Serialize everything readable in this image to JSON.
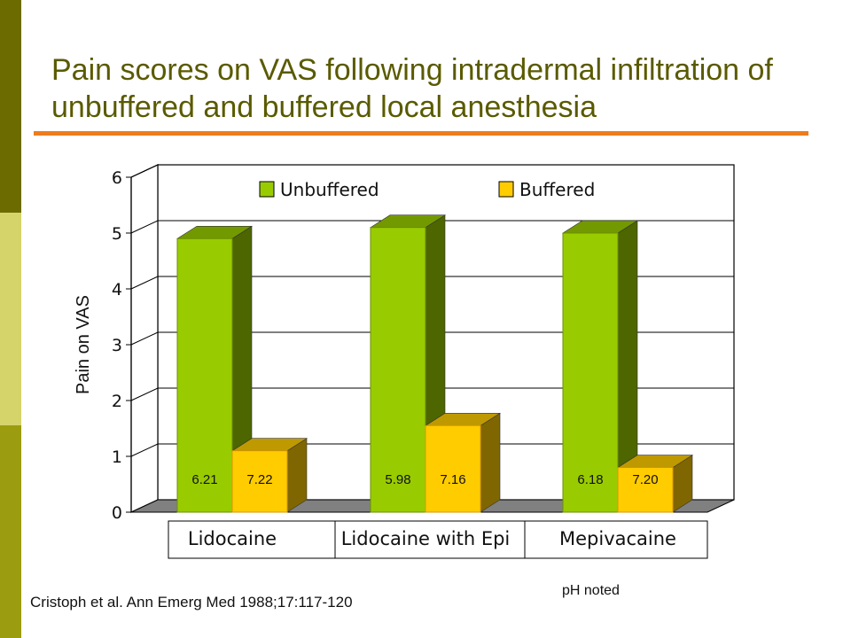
{
  "title": "Pain scores on VAS following intradermal infiltration of unbuffered and buffered local anesthesia",
  "citation": "Cristoph et al. Ann Emerg Med 1988;17:117-120",
  "note": "pH noted",
  "colors": {
    "accent_rule": "#ee7c1c",
    "title_text": "#5a5a00",
    "unbuffered_front": "#99cc00",
    "unbuffered_side": "#4d6600",
    "unbuffered_top": "#739900",
    "buffered_front": "#ffcc00",
    "buffered_side": "#806600",
    "buffered_top": "#bf9900"
  },
  "chart_data": {
    "type": "bar",
    "categories": [
      "Lidocaine",
      "Lidocaine with Epi",
      "Mepivacaine"
    ],
    "series": [
      {
        "name": "Unbuffered",
        "values": [
          4.9,
          5.1,
          5.0
        ],
        "labels": [
          "6.21",
          "5.98",
          "6.18"
        ]
      },
      {
        "name": "Buffered",
        "values": [
          1.1,
          1.55,
          0.8
        ],
        "labels": [
          "7.22",
          "7.16",
          "7.20"
        ]
      }
    ],
    "ylabel": "Pain on VAS",
    "xlabel": "",
    "ylim": [
      0,
      6
    ],
    "yticks": [
      "0",
      "1",
      "2",
      "3",
      "4",
      "5",
      "6"
    ],
    "grid": true,
    "legend_position": "top"
  }
}
